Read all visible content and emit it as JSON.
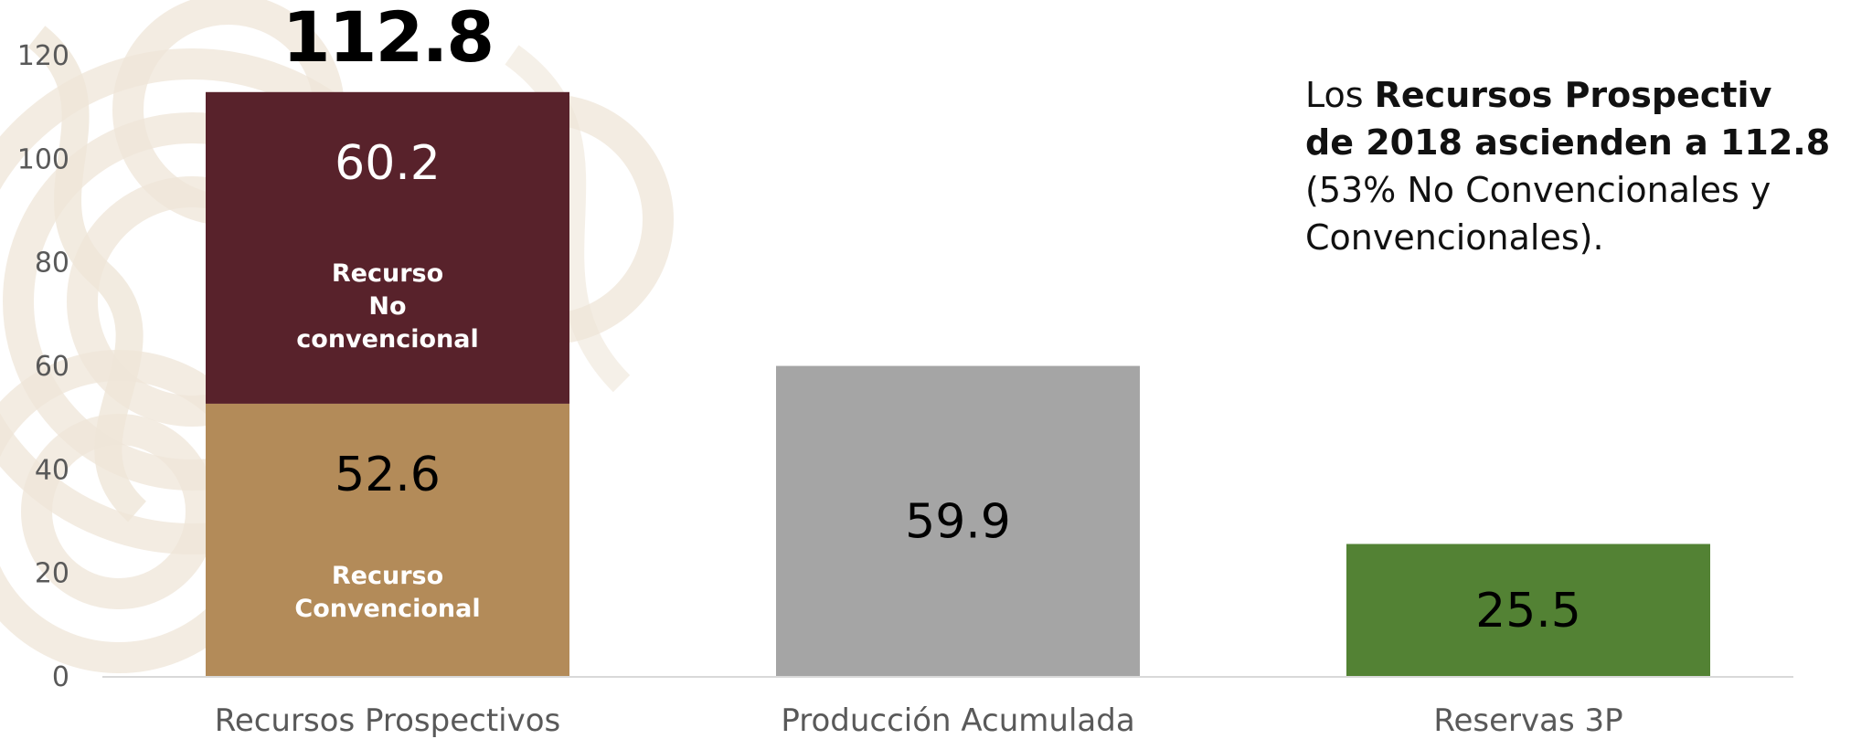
{
  "colors": {
    "no_convencional": "#58222b",
    "convencional": "#b38b59",
    "produccion": "#a5a5a5",
    "reservas": "#538234",
    "axis_line": "#d9d9d9",
    "watermark": "#efe6d8"
  },
  "annotation": {
    "line1_plain": "Los ",
    "line1_bold": "Recursos Prospectiv",
    "line2_bold": "de 2018 ascienden a 112.8",
    "line3": "(53% No Convencionales y",
    "line4": "Convencionales)."
  },
  "chart_data": {
    "type": "bar",
    "stacked": true,
    "categories": [
      "Recursos Prospectivos",
      "Producción Acumulada",
      "Reservas 3P"
    ],
    "series": [
      {
        "name": "Recurso Convencional",
        "values": [
          52.6,
          null,
          null
        ],
        "color": "#b38b59",
        "label_color": "#000000"
      },
      {
        "name": "Recurso No convencional",
        "values": [
          60.2,
          null,
          null
        ],
        "color": "#58222b",
        "label_color": "#ffffff"
      },
      {
        "name": "",
        "values": [
          null,
          59.9,
          null
        ],
        "color": "#a5a5a5",
        "label_color": "#000000"
      },
      {
        "name": "",
        "values": [
          null,
          null,
          25.5
        ],
        "color": "#538234",
        "label_color": "#000000"
      }
    ],
    "segment_names": {
      "convencional": [
        "Recurso",
        "Convencional"
      ],
      "no_convencional": [
        "Recurso",
        "No",
        "convencional"
      ]
    },
    "totals": [
      {
        "category_index": 0,
        "label": "112.8"
      }
    ],
    "y_ticks": [
      0,
      20,
      40,
      60,
      80,
      100,
      120
    ],
    "ylim": [
      0,
      120
    ],
    "title": "",
    "xlabel": "",
    "ylabel": "",
    "grid": false,
    "legend": "none"
  }
}
